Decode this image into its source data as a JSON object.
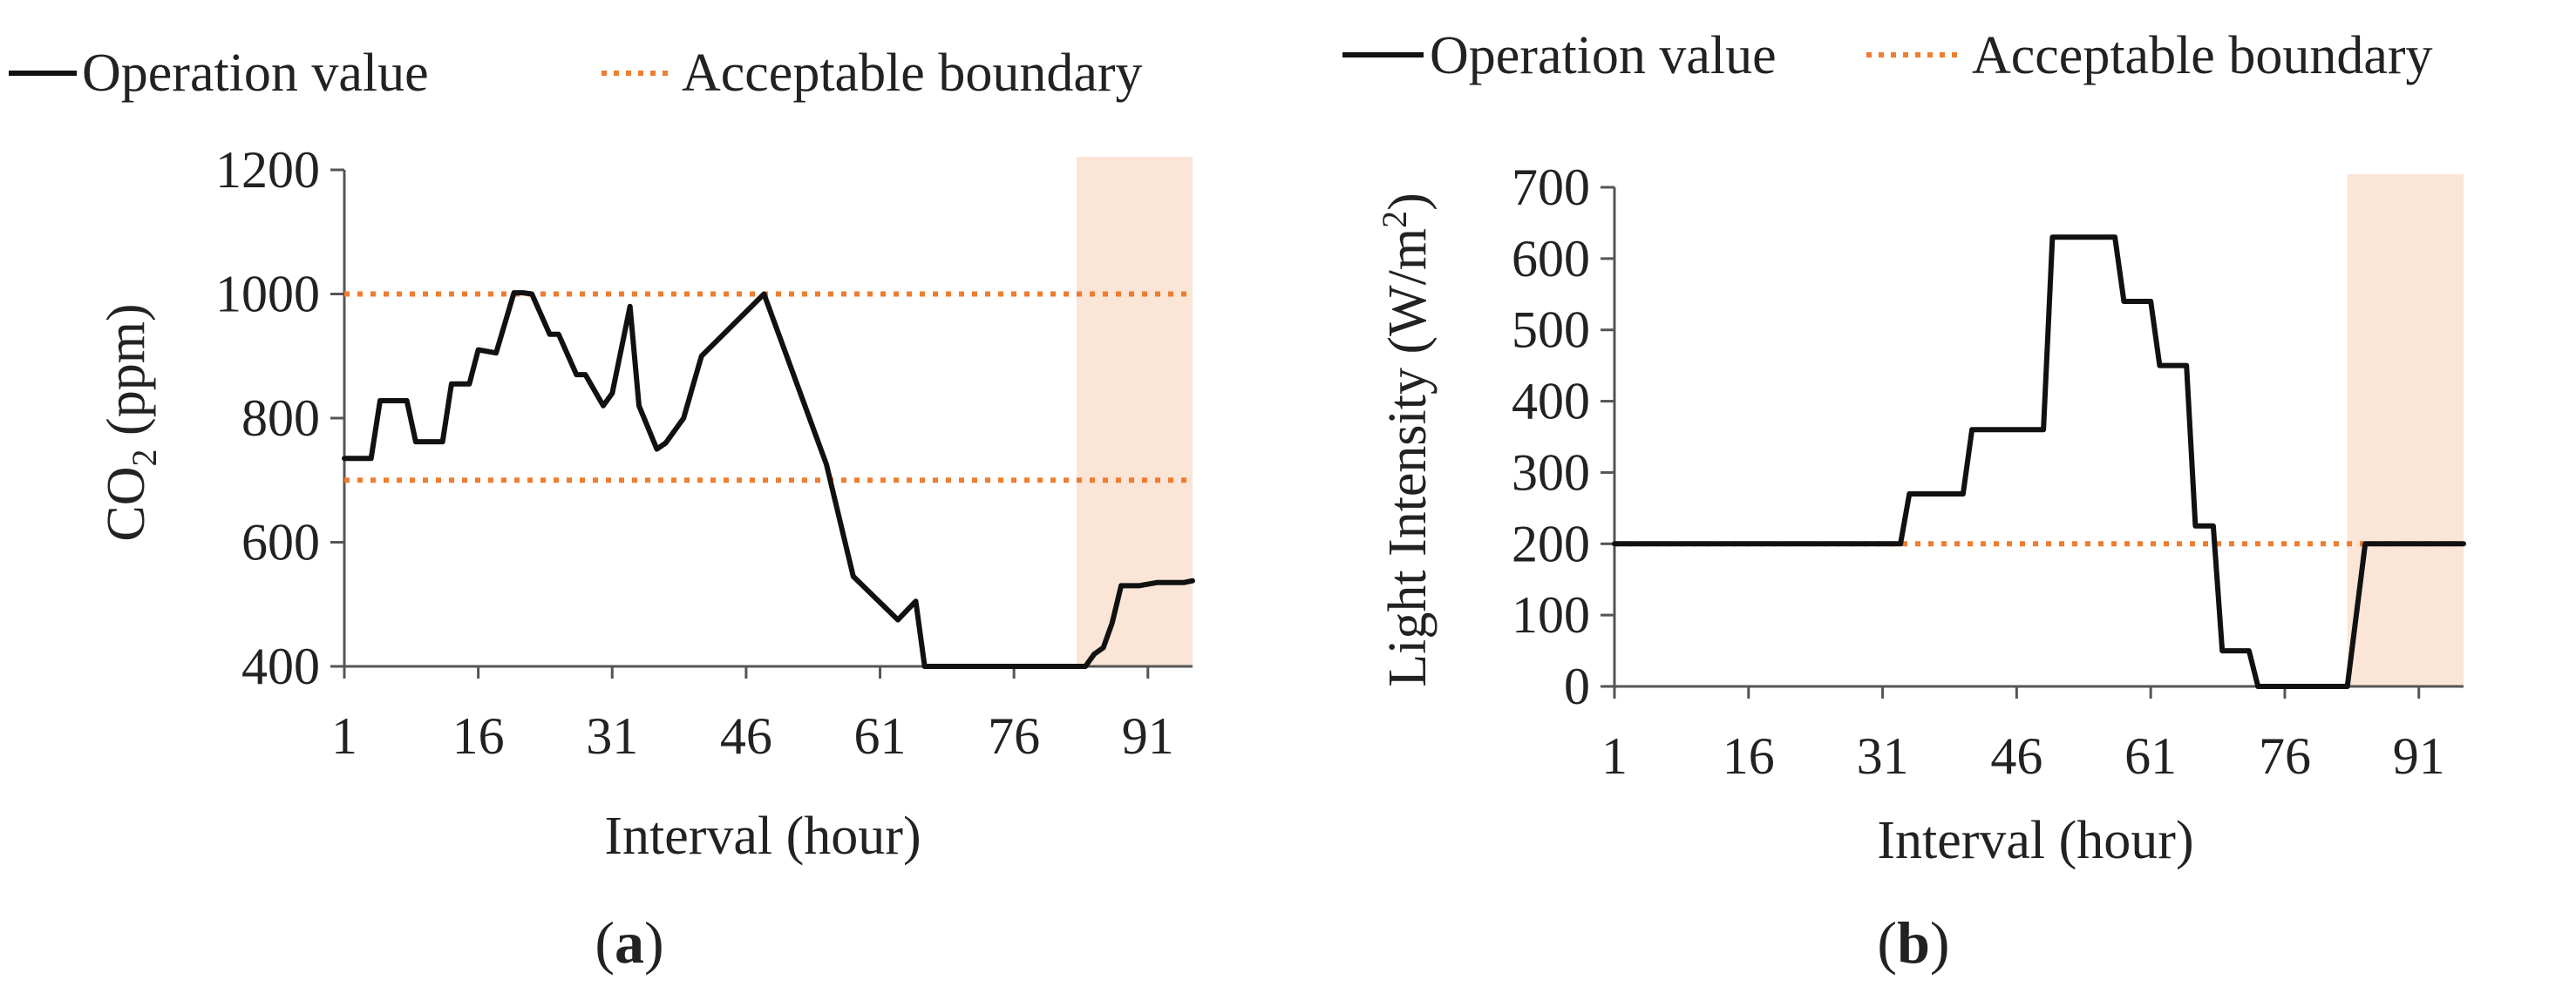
{
  "colors": {
    "operation_line": "#111111",
    "boundary_line": "#ED7D31",
    "shade": "#FBE5D6",
    "axis": "#555555"
  },
  "legend": {
    "operation_label": "Operation value",
    "boundary_label": "Acceptable boundary"
  },
  "chart_data": [
    {
      "id": "a",
      "type": "line",
      "panel_label_open": "(",
      "panel_label_letter": "a",
      "panel_label_close": ")",
      "title": "",
      "xlabel": "Interval (hour)",
      "ylabel_main": "CO",
      "ylabel_sub": "2",
      "ylabel_rest": " (ppm)",
      "xlim": [
        1,
        96
      ],
      "ylim": [
        400,
        1200
      ],
      "yticks": [
        "400",
        "600",
        "800",
        "1000",
        "1200"
      ],
      "ytick_values": [
        400,
        600,
        800,
        1000,
        1200
      ],
      "xticks": [
        "1",
        "16",
        "31",
        "46",
        "61",
        "76",
        "91"
      ],
      "xtick_values": [
        1,
        16,
        31,
        46,
        61,
        76,
        91
      ],
      "boundaries": [
        700,
        1000
      ],
      "shaded_region": [
        83,
        96
      ],
      "series": [
        {
          "name": "Operation value",
          "x": [
            1,
            4,
            5,
            8,
            9,
            12,
            13,
            15,
            16,
            18,
            20,
            21,
            22,
            24,
            25,
            27,
            28,
            30,
            31,
            33,
            34,
            36,
            37,
            39,
            40,
            41,
            48,
            55,
            58,
            63,
            65,
            66,
            84,
            85,
            86,
            87,
            88,
            90,
            92,
            95,
            96
          ],
          "y": [
            735,
            735,
            828,
            828,
            762,
            762,
            855,
            855,
            910,
            905,
            1002,
            1002,
            1000,
            935,
            935,
            870,
            870,
            820,
            840,
            980,
            820,
            750,
            760,
            800,
            850,
            900,
            1000,
            725,
            545,
            475,
            505,
            400,
            400,
            420,
            430,
            470,
            530,
            530,
            535,
            535,
            538
          ]
        }
      ]
    },
    {
      "id": "b",
      "type": "line",
      "panel_label_open": "(",
      "panel_label_letter": "b",
      "panel_label_close": ")",
      "title": "",
      "xlabel": "Interval (hour)",
      "ylabel_main": "Light Intensity (W/m",
      "ylabel_sup": "2",
      "ylabel_rest": ")",
      "xlim": [
        1,
        96
      ],
      "ylim": [
        0,
        700
      ],
      "yticks": [
        "0",
        "100",
        "200",
        "300",
        "400",
        "500",
        "600",
        "700"
      ],
      "ytick_values": [
        0,
        100,
        200,
        300,
        400,
        500,
        600,
        700
      ],
      "xticks": [
        "1",
        "16",
        "31",
        "46",
        "61",
        "76",
        "91"
      ],
      "xtick_values": [
        1,
        16,
        31,
        46,
        61,
        76,
        91
      ],
      "boundaries": [
        200
      ],
      "shaded_region": [
        83,
        96
      ],
      "series": [
        {
          "name": "Operation value",
          "x": [
            1,
            33,
            34,
            40,
            41,
            49,
            50,
            57,
            58,
            61,
            62,
            65,
            66,
            68,
            69,
            72,
            73,
            83,
            85,
            96
          ],
          "y": [
            200,
            200,
            270,
            270,
            360,
            360,
            630,
            630,
            540,
            540,
            450,
            450,
            225,
            225,
            50,
            50,
            0,
            0,
            200,
            200
          ]
        }
      ]
    }
  ]
}
